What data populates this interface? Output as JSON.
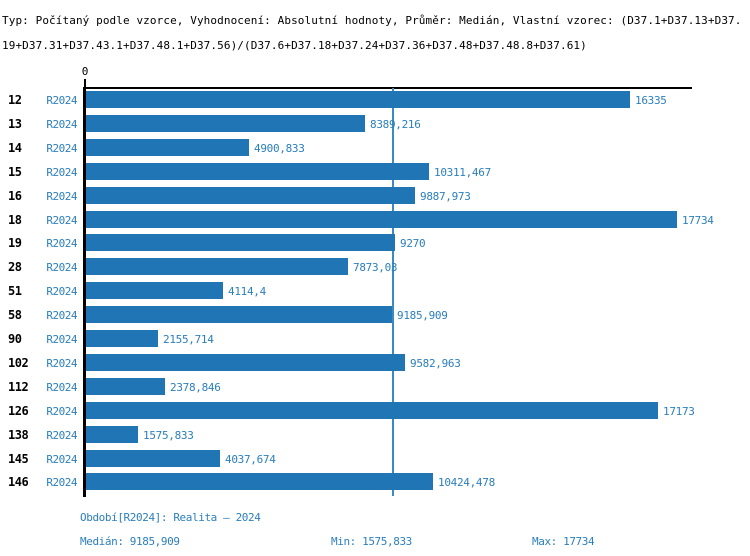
{
  "header": {
    "line1": "Typ: Počítaný podle vzorce, Vyhodnocení: Absolutní hodnoty, Průměr: Medián, Vlastní vzorec: (D37.1+D37.13+D37.",
    "line2": "19+D37.31+D37.43.1+D37.48.1+D37.56)/(D37.6+D37.18+D37.24+D37.36+D37.48+D37.48.8+D37.61)"
  },
  "chart_data": {
    "type": "bar",
    "orientation": "horizontal",
    "title": "",
    "axis_zero_label": "0",
    "series_label": "R2024",
    "categories": [
      "12",
      "13",
      "14",
      "15",
      "16",
      "18",
      "19",
      "28",
      "51",
      "58",
      "90",
      "102",
      "112",
      "126",
      "138",
      "145",
      "146"
    ],
    "values": [
      16335,
      8389.216,
      4900.833,
      10311.467,
      9887.973,
      17734,
      9270,
      7873.03,
      4114.4,
      9185.909,
      2155.714,
      9582.963,
      2378.846,
      17173,
      1575.833,
      4037.674,
      10424.478
    ],
    "value_labels": [
      "16335",
      "8389,216",
      "4900,833",
      "10311,467",
      "9887,973",
      "17734",
      "9270",
      "7873,03",
      "4114,4",
      "9185,909",
      "2155,714",
      "9582,963",
      "2378,846",
      "17173",
      "1575,833",
      "4037,674",
      "10424,478"
    ],
    "xlim": [
      0,
      17734
    ],
    "median": 9185.909,
    "min": 1575.833,
    "max": 17734,
    "grid": false,
    "legend_position": "none",
    "bar_color": "#2076b4",
    "median_line_color": "#3a8bc2",
    "label_color": "#2b7fbd",
    "axis_color": "#000000"
  },
  "footer": {
    "period": "Období[R2024]: Realita – 2024",
    "median": "Medián: 9185,909",
    "min": "Min: 1575,833",
    "max": "Max: 17734"
  }
}
